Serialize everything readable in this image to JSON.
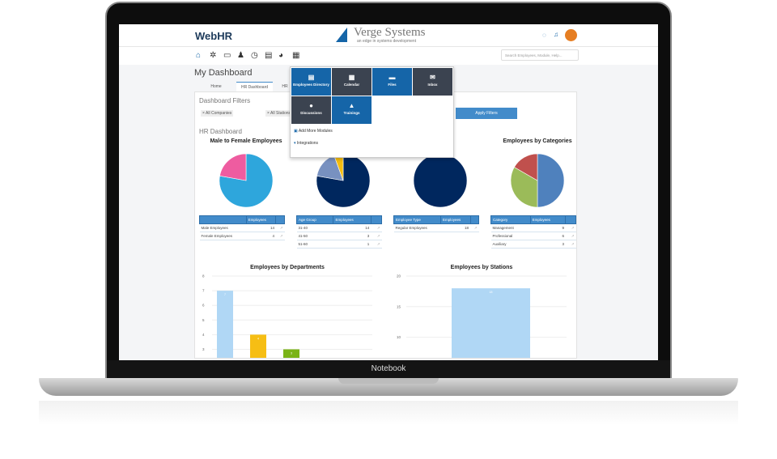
{
  "laptop": {
    "label": "Notebook"
  },
  "header": {
    "logo": "WebHR",
    "brand": "Verge Systems",
    "tagline": "an edge in systems development"
  },
  "nav": {
    "icons": [
      "home-icon",
      "gear-icon",
      "id-card-icon",
      "users-icon",
      "clock-icon",
      "calculator-icon",
      "pie-chart-icon",
      "grid-icon"
    ],
    "search_placeholder": "Search Employees, Module, Help..."
  },
  "page": {
    "title": "My Dashboard",
    "tabs": [
      "Home",
      "HR Dashboard",
      "HR"
    ]
  },
  "filters": {
    "title": "Dashboard Filters",
    "chips": [
      "× All Companies",
      "× All Stations"
    ],
    "apply": "Apply Filters"
  },
  "dropdown": {
    "tiles": [
      {
        "label": "Employees Directory",
        "icon": "▤",
        "color": "blue"
      },
      {
        "label": "Calendar",
        "icon": "▦",
        "color": "dark"
      },
      {
        "label": "Files",
        "icon": "▬",
        "color": "blue"
      },
      {
        "label": "Inbox",
        "icon": "✉",
        "color": "dark"
      },
      {
        "label": "Discussions",
        "icon": "●",
        "color": "dark"
      },
      {
        "label": "Trainings",
        "icon": "▲",
        "color": "blue"
      }
    ],
    "links": [
      "Add More Modules",
      "Integrations"
    ]
  },
  "dashboard": {
    "title": "HR Dashboard"
  },
  "chart_data": [
    {
      "type": "pie",
      "title": "Male to Female Employees",
      "header": [
        "",
        "Employees"
      ],
      "categories": [
        "Male Employees",
        "Female Employees"
      ],
      "values": [
        14,
        4
      ],
      "colors": [
        "#2ea6dc",
        "#ee5ca0"
      ]
    },
    {
      "type": "pie",
      "title": "",
      "header": [
        "Age Group",
        "Employees"
      ],
      "categories": [
        "31-40",
        "41-50",
        "51-60"
      ],
      "values": [
        14,
        3,
        1
      ],
      "colors": [
        "#00275e",
        "#7891c0",
        "#f5bd0f"
      ]
    },
    {
      "type": "pie",
      "title": "",
      "header": [
        "Employee Type",
        "Employees"
      ],
      "categories": [
        "Regular Employees"
      ],
      "values": [
        18
      ],
      "colors": [
        "#00275e"
      ]
    },
    {
      "type": "pie",
      "title": "Employees by Categories",
      "header": [
        "Category",
        "Employees"
      ],
      "categories": [
        "Management",
        "Professional",
        "Auxiliary"
      ],
      "values": [
        9,
        6,
        3
      ],
      "colors": [
        "#4f81bd",
        "#9bbb59",
        "#c0504d"
      ]
    },
    {
      "type": "bar",
      "title": "Employees by Departments",
      "values": [
        7,
        4,
        3
      ],
      "colors": [
        "#b0d7f5",
        "#f6be14",
        "#7ab317"
      ],
      "yticks": [
        3,
        4,
        5,
        6,
        7,
        8
      ],
      "ylim": [
        0,
        8
      ]
    },
    {
      "type": "bar",
      "title": "Employees by Stations",
      "values": [
        18
      ],
      "colors": [
        "#b0d7f5"
      ],
      "yticks": [
        10,
        15,
        20
      ],
      "ylim": [
        0,
        20
      ]
    }
  ]
}
